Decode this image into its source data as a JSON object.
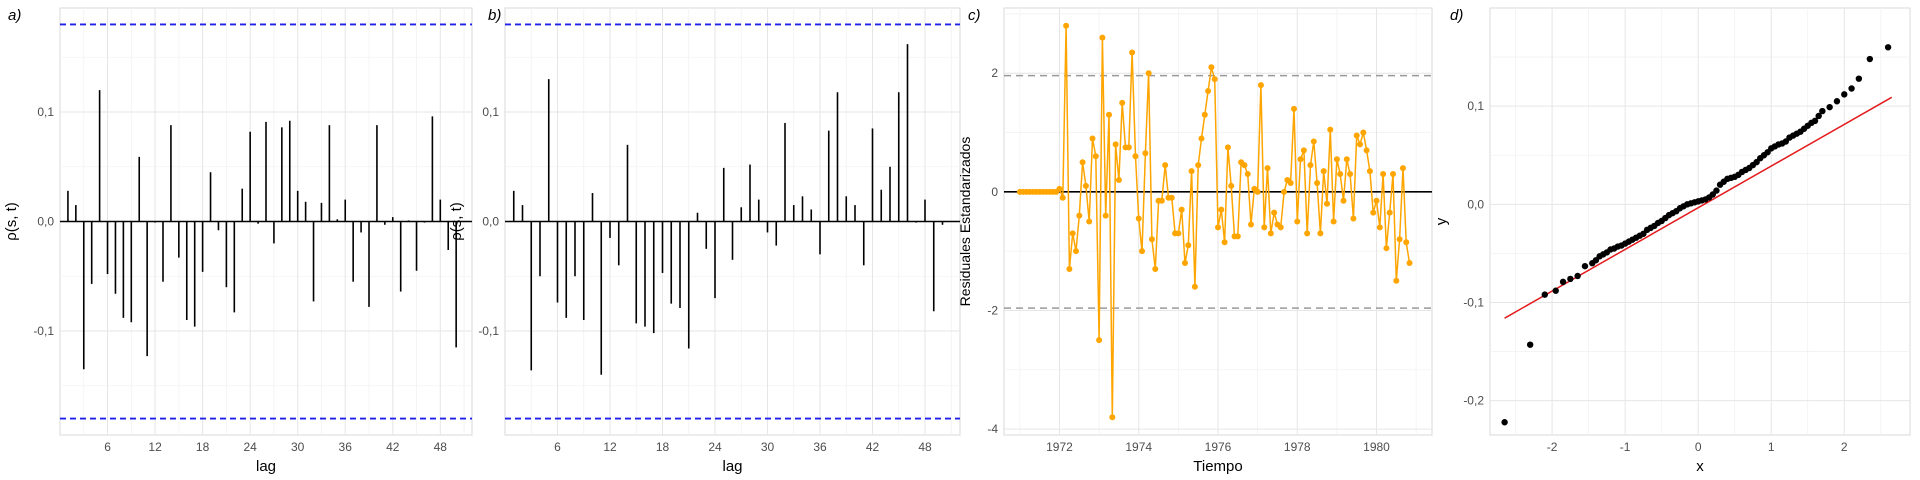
{
  "chart_data": [
    {
      "panel": "a)",
      "type": "bar",
      "xlabel": "lag",
      "ylabel": "ρ(s, t)",
      "xlim": [
        0,
        52
      ],
      "ylim": [
        -0.195,
        0.195
      ],
      "xticks": [
        6,
        12,
        18,
        24,
        30,
        36,
        42,
        48
      ],
      "xtick_labels": [
        "6",
        "12",
        "18",
        "24",
        "30",
        "36",
        "42",
        "48"
      ],
      "yticks": [
        -0.1,
        0,
        0.1
      ],
      "ytick_labels": [
        "-0,1",
        "0,0",
        "0,1"
      ],
      "grid": true,
      "confidence_band": 0.18,
      "lags": [
        1,
        2,
        3,
        4,
        5,
        6,
        7,
        8,
        9,
        10,
        11,
        12,
        13,
        14,
        15,
        16,
        17,
        18,
        19,
        20,
        21,
        22,
        23,
        24,
        25,
        26,
        27,
        28,
        29,
        30,
        31,
        32,
        33,
        34,
        35,
        36,
        37,
        38,
        39,
        40,
        41,
        42,
        43,
        44,
        45,
        46,
        47,
        48,
        49,
        50
      ],
      "values": [
        0.028,
        0.015,
        -0.135,
        -0.057,
        0.12,
        -0.048,
        -0.066,
        -0.088,
        -0.092,
        0.059,
        -0.123,
        -0.001,
        -0.055,
        0.088,
        -0.033,
        -0.09,
        -0.096,
        -0.046,
        0.045,
        -0.008,
        -0.06,
        -0.083,
        0.03,
        0.082,
        -0.002,
        0.091,
        -0.02,
        0.086,
        0.092,
        0.028,
        0.018,
        -0.073,
        0.017,
        0.088,
        0.002,
        0.02,
        -0.055,
        -0.01,
        -0.078,
        0.088,
        -0.003,
        0.004,
        -0.064,
        0.001,
        -0.045,
        -0.001,
        0.096,
        0.02,
        -0.026,
        -0.115
      ]
    },
    {
      "panel": "b)",
      "type": "bar",
      "xlabel": "lag",
      "ylabel": "ρ(s, t)",
      "xlim": [
        0,
        52
      ],
      "ylim": [
        -0.195,
        0.195
      ],
      "xticks": [
        6,
        12,
        18,
        24,
        30,
        36,
        42,
        48
      ],
      "xtick_labels": [
        "6",
        "12",
        "18",
        "24",
        "30",
        "36",
        "42",
        "48"
      ],
      "yticks": [
        -0.1,
        0,
        0.1
      ],
      "ytick_labels": [
        "-0,1",
        "0,0",
        "0,1"
      ],
      "grid": true,
      "confidence_band": 0.18,
      "lags": [
        1,
        2,
        3,
        4,
        5,
        6,
        7,
        8,
        9,
        10,
        11,
        12,
        13,
        14,
        15,
        16,
        17,
        18,
        19,
        20,
        21,
        22,
        23,
        24,
        25,
        26,
        27,
        28,
        29,
        30,
        31,
        32,
        33,
        34,
        35,
        36,
        37,
        38,
        39,
        40,
        41,
        42,
        43,
        44,
        45,
        46,
        47,
        48,
        49,
        50
      ],
      "values": [
        0.028,
        0.015,
        -0.136,
        -0.05,
        0.13,
        -0.074,
        -0.088,
        -0.05,
        -0.09,
        0.026,
        -0.14,
        -0.015,
        -0.04,
        0.07,
        -0.093,
        -0.096,
        -0.102,
        -0.047,
        -0.075,
        -0.079,
        -0.116,
        0.008,
        -0.025,
        -0.07,
        0.049,
        -0.035,
        0.013,
        0.052,
        0.02,
        -0.01,
        -0.022,
        0.09,
        0.015,
        0.023,
        0.011,
        -0.03,
        0.083,
        0.118,
        0.023,
        0.015,
        -0.04,
        0.085,
        0.029,
        0.05,
        0.118,
        0.162,
        -0.001,
        0.02,
        -0.082,
        -0.003
      ]
    },
    {
      "panel": "c)",
      "type": "line",
      "xlabel": "Tiempo",
      "ylabel": "Residuales Estandarizados",
      "xlim": [
        1970.6,
        1981.4
      ],
      "ylim": [
        -4.1,
        3.1
      ],
      "xticks": [
        1972,
        1974,
        1976,
        1978,
        1980
      ],
      "xtick_labels": [
        "1972",
        "1974",
        "1976",
        "1978",
        "1980"
      ],
      "yticks": [
        -4,
        -2,
        0,
        2
      ],
      "ytick_labels": [
        "-4",
        "-2",
        "0",
        "2"
      ],
      "grid": true,
      "reference_lines": [
        -1.96,
        0,
        1.96
      ],
      "color": "#FFA500",
      "x": [
        1971.0,
        1971.083,
        1971.167,
        1971.25,
        1971.333,
        1971.417,
        1971.5,
        1971.583,
        1971.667,
        1971.75,
        1971.833,
        1971.917,
        1972.0,
        1972.083,
        1972.167,
        1972.25,
        1972.333,
        1972.417,
        1972.5,
        1972.583,
        1972.667,
        1972.75,
        1972.833,
        1972.917,
        1973.0,
        1973.083,
        1973.167,
        1973.25,
        1973.333,
        1973.417,
        1973.5,
        1973.583,
        1973.667,
        1973.75,
        1973.833,
        1973.917,
        1974.0,
        1974.083,
        1974.167,
        1974.25,
        1974.333,
        1974.417,
        1974.5,
        1974.583,
        1974.667,
        1974.75,
        1974.833,
        1974.917,
        1975.0,
        1975.083,
        1975.167,
        1975.25,
        1975.333,
        1975.417,
        1975.5,
        1975.583,
        1975.667,
        1975.75,
        1975.833,
        1975.917,
        1976.0,
        1976.083,
        1976.167,
        1976.25,
        1976.333,
        1976.417,
        1976.5,
        1976.583,
        1976.667,
        1976.75,
        1976.833,
        1976.917,
        1977.0,
        1977.083,
        1977.167,
        1977.25,
        1977.333,
        1977.417,
        1977.5,
        1977.583,
        1977.667,
        1977.75,
        1977.833,
        1977.917,
        1978.0,
        1978.083,
        1978.167,
        1978.25,
        1978.333,
        1978.417,
        1978.5,
        1978.583,
        1978.667,
        1978.75,
        1978.833,
        1978.917,
        1979.0,
        1979.083,
        1979.167,
        1979.25,
        1979.333,
        1979.417,
        1979.5,
        1979.583,
        1979.667,
        1979.75,
        1979.833,
        1979.917,
        1980.0,
        1980.083,
        1980.167,
        1980.25,
        1980.333,
        1980.417,
        1980.5,
        1980.583,
        1980.667,
        1980.75,
        1980.833
      ],
      "y": [
        0,
        0,
        0,
        0,
        0,
        0,
        0,
        0,
        0,
        0,
        0,
        0,
        0.05,
        -0.1,
        2.8,
        -1.3,
        -0.7,
        -1.0,
        -0.4,
        0.5,
        0.1,
        -0.5,
        0.9,
        0.6,
        -2.5,
        2.6,
        -0.4,
        1.3,
        -3.8,
        0.8,
        0.2,
        1.5,
        0.75,
        0.75,
        2.35,
        0.6,
        -0.45,
        -1.0,
        0.65,
        2.0,
        -0.8,
        -1.3,
        -0.15,
        -0.15,
        0.45,
        -0.1,
        -0.1,
        -0.7,
        -0.7,
        -0.3,
        -1.2,
        -0.9,
        0.35,
        -1.6,
        0.45,
        0.9,
        1.3,
        1.7,
        2.1,
        1.9,
        -0.6,
        -0.3,
        -0.85,
        0.75,
        0.1,
        -0.75,
        -0.75,
        0.5,
        0.45,
        0.3,
        -0.55,
        0.05,
        0.0,
        1.8,
        -0.6,
        0.4,
        -0.7,
        -0.35,
        -0.55,
        -0.6,
        0.0,
        0.2,
        0.15,
        1.4,
        -0.5,
        0.55,
        0.7,
        -0.7,
        0.45,
        0.85,
        0.15,
        -0.7,
        0.35,
        -0.2,
        1.05,
        -0.5,
        0.55,
        0.3,
        -0.15,
        0.55,
        0.3,
        -0.45,
        0.95,
        0.8,
        1.0,
        0.7,
        0.35,
        -0.35,
        -0.15,
        -0.6,
        0.3,
        -0.95,
        -0.35,
        0.3,
        -1.5,
        -0.8,
        0.4,
        -0.85,
        -1.2
      ]
    },
    {
      "panel": "d)",
      "type": "scatter",
      "xlabel": "x",
      "ylabel": "y",
      "xlim": [
        -2.85,
        2.9
      ],
      "ylim": [
        -0.235,
        0.2
      ],
      "xticks": [
        -2,
        -1,
        0,
        1,
        2
      ],
      "xtick_labels": [
        "-2",
        "-1",
        "0",
        "1",
        "2"
      ],
      "yticks": [
        -0.2,
        -0.1,
        0,
        0.1
      ],
      "ytick_labels": [
        "-0,2",
        "-0,1",
        "0,0",
        "0,1"
      ],
      "grid": true,
      "reference_line": {
        "x": [
          -2.65,
          2.65
        ],
        "y": [
          -0.116,
          0.109
        ],
        "color": "#e31a1c"
      },
      "points_x": [
        -2.65,
        -2.3,
        -2.1,
        -1.95,
        -1.85,
        -1.75,
        -1.65,
        -1.55,
        -1.45,
        -1.4,
        -1.35,
        -1.3,
        -1.25,
        -1.2,
        -1.15,
        -1.1,
        -1.05,
        -1.0,
        -0.95,
        -0.9,
        -0.85,
        -0.8,
        -0.75,
        -0.7,
        -0.65,
        -0.6,
        -0.55,
        -0.5,
        -0.45,
        -0.4,
        -0.35,
        -0.3,
        -0.25,
        -0.2,
        -0.15,
        -0.1,
        -0.05,
        0.0,
        0.05,
        0.1,
        0.15,
        0.2,
        0.25,
        0.3,
        0.35,
        0.4,
        0.45,
        0.5,
        0.55,
        0.6,
        0.65,
        0.7,
        0.75,
        0.8,
        0.85,
        0.9,
        0.95,
        1.0,
        1.05,
        1.1,
        1.15,
        1.2,
        1.25,
        1.3,
        1.35,
        1.4,
        1.45,
        1.5,
        1.55,
        1.6,
        1.65,
        1.7,
        1.8,
        1.9,
        2.0,
        2.1,
        2.2,
        2.35,
        2.6
      ],
      "points_y": [
        -0.222,
        -0.143,
        -0.092,
        -0.088,
        -0.079,
        -0.076,
        -0.073,
        -0.063,
        -0.06,
        -0.057,
        -0.053,
        -0.051,
        -0.049,
        -0.046,
        -0.045,
        -0.043,
        -0.042,
        -0.04,
        -0.038,
        -0.036,
        -0.034,
        -0.032,
        -0.03,
        -0.026,
        -0.024,
        -0.022,
        -0.019,
        -0.017,
        -0.014,
        -0.011,
        -0.009,
        -0.007,
        -0.004,
        -0.002,
        0.0,
        0.001,
        0.002,
        0.003,
        0.004,
        0.005,
        0.007,
        0.01,
        0.014,
        0.02,
        0.023,
        0.026,
        0.027,
        0.028,
        0.03,
        0.033,
        0.035,
        0.037,
        0.04,
        0.043,
        0.047,
        0.05,
        0.053,
        0.057,
        0.059,
        0.061,
        0.062,
        0.064,
        0.068,
        0.07,
        0.072,
        0.074,
        0.077,
        0.08,
        0.083,
        0.085,
        0.09,
        0.095,
        0.099,
        0.105,
        0.112,
        0.118,
        0.128,
        0.148,
        0.16
      ]
    }
  ]
}
